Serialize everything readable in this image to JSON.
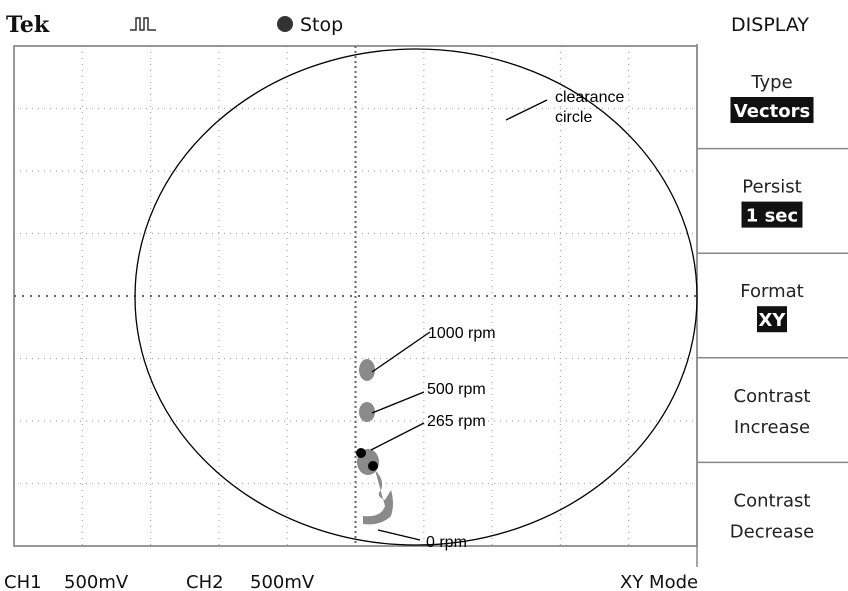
{
  "header": {
    "brand": "Tek",
    "state": "Stop",
    "menu_title": "DISPLAY"
  },
  "menu": [
    {
      "label": "Type",
      "value": "Vectors"
    },
    {
      "label": "Persist",
      "value": "1 sec"
    },
    {
      "label": "Format",
      "value": "XY"
    },
    {
      "label": "Contrast",
      "value": "Increase"
    },
    {
      "label": "Contrast",
      "value": "Decrease"
    }
  ],
  "footer": {
    "ch1": "CH1",
    "ch1_scale": "500mV",
    "ch2": "CH2",
    "ch2_scale": "500mV",
    "mode": "XY Mode"
  },
  "annotations": {
    "circle": [
      "clearance",
      "circle"
    ],
    "rpm_1000": "1000 rpm",
    "rpm_500": "500 rpm",
    "rpm_265": "265 rpm",
    "rpm_0": "0 rpm"
  }
}
